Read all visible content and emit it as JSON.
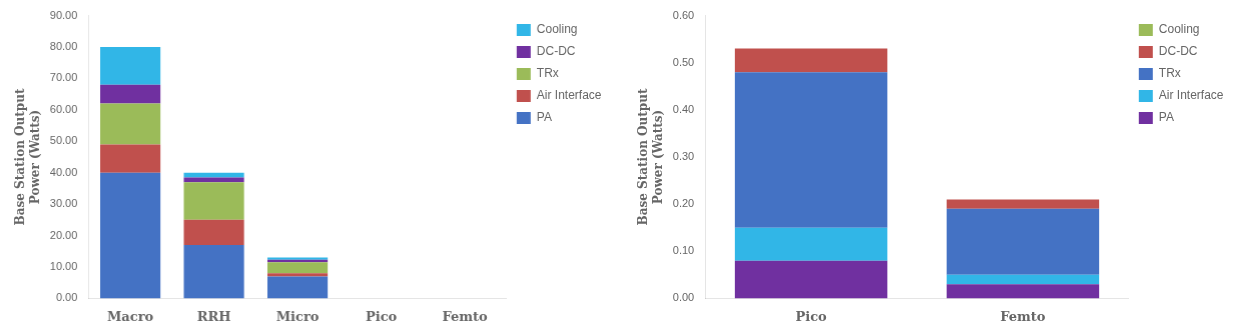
{
  "chart_data": [
    {
      "type": "bar",
      "stacked": true,
      "categories": [
        "Macro",
        "RRH",
        "Micro",
        "Pico",
        "Femto"
      ],
      "series": [
        {
          "name": "PA",
          "color": "#4472c4",
          "values": [
            40.0,
            17.0,
            7.0,
            0.0,
            0.0
          ]
        },
        {
          "name": "Air Interface",
          "color": "#c0504d",
          "values": [
            9.0,
            8.0,
            1.0,
            0.0,
            0.0
          ]
        },
        {
          "name": "TRx",
          "color": "#9bbb59",
          "values": [
            13.0,
            12.0,
            3.5,
            0.0,
            0.0
          ]
        },
        {
          "name": "DC-DC",
          "color": "#7030a0",
          "values": [
            6.0,
            1.5,
            0.8,
            0.0,
            0.0
          ]
        },
        {
          "name": "Cooling",
          "color": "#31b6e7",
          "values": [
            12.0,
            1.5,
            0.7,
            0.0,
            0.0
          ]
        }
      ],
      "ylabel": "Base Station Output\nPower (Watts)",
      "ylim": [
        0,
        90
      ],
      "yticks": [
        {
          "value": 0,
          "label": "0.00"
        },
        {
          "value": 10,
          "label": "10.00"
        },
        {
          "value": 20,
          "label": "20.00"
        },
        {
          "value": 30,
          "label": "30.00"
        },
        {
          "value": 40,
          "label": "40.00"
        },
        {
          "value": 50,
          "label": "50.00"
        },
        {
          "value": 60,
          "label": "60.00"
        },
        {
          "value": 70,
          "label": "70.00"
        },
        {
          "value": 80,
          "label": "80.00"
        },
        {
          "value": 90,
          "label": "90.00"
        }
      ],
      "grid": false,
      "legend": "right"
    },
    {
      "type": "bar",
      "stacked": true,
      "categories": [
        "Pico",
        "Femto"
      ],
      "series": [
        {
          "name": "PA",
          "color": "#7030a0",
          "values": [
            0.08,
            0.03
          ]
        },
        {
          "name": "Air Interface",
          "color": "#31b6e7",
          "values": [
            0.07,
            0.02
          ]
        },
        {
          "name": "TRx",
          "color": "#4472c4",
          "values": [
            0.33,
            0.14
          ]
        },
        {
          "name": "DC-DC",
          "color": "#c0504d",
          "values": [
            0.05,
            0.02
          ]
        },
        {
          "name": "Cooling",
          "color": "#9bbb59",
          "values": [
            0.0,
            0.0
          ]
        }
      ],
      "ylabel": "Base Station Output\nPower (Watts)",
      "ylim": [
        0,
        0.6
      ],
      "yticks": [
        {
          "value": 0.0,
          "label": "0.00"
        },
        {
          "value": 0.1,
          "label": "0.10"
        },
        {
          "value": 0.2,
          "label": "0.20"
        },
        {
          "value": 0.3,
          "label": "0.30"
        },
        {
          "value": 0.4,
          "label": "0.40"
        },
        {
          "value": 0.5,
          "label": "0.50"
        },
        {
          "value": 0.6,
          "label": "0.60"
        }
      ],
      "grid": false,
      "legend": "right"
    }
  ]
}
